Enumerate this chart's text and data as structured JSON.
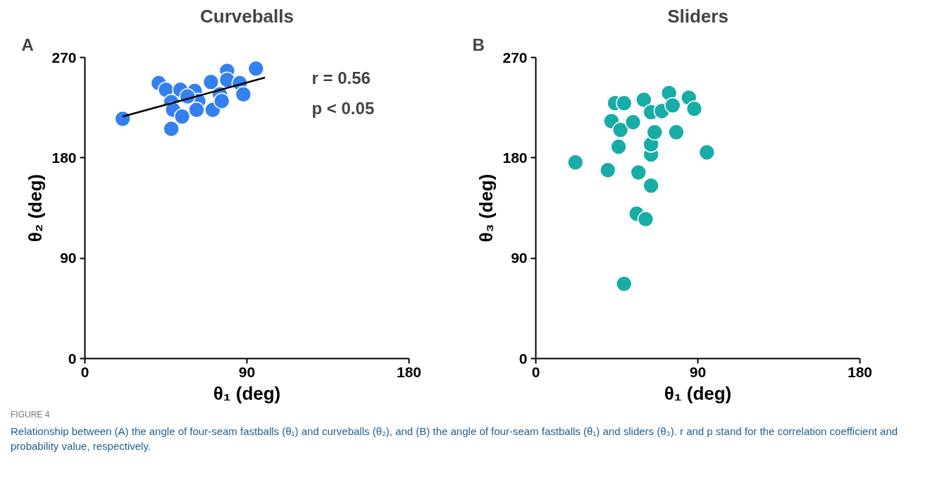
{
  "chart_data": [
    {
      "type": "scatter",
      "title": "Curveballs",
      "xlabel": "θ₁ (deg)",
      "ylabel": "θ₂ (deg)",
      "annotations": [
        "A",
        "r = 0.56",
        "p < 0.05"
      ],
      "xlim": [
        0,
        180
      ],
      "ylim": [
        0,
        270
      ],
      "xticks": [
        0,
        90,
        180
      ],
      "yticks": [
        0,
        90,
        180,
        270
      ],
      "grid": false,
      "series": [
        {
          "marker": "circle",
          "color": "#3580ef",
          "x": [
            21,
            41,
            48,
            45,
            53,
            48,
            49,
            54,
            61,
            63,
            62,
            70,
            71,
            75,
            76,
            79,
            79,
            86,
            88,
            95,
            57
          ],
          "values": [
            215,
            247,
            206,
            241,
            241,
            230,
            223,
            217,
            240,
            231,
            223,
            248,
            223,
            237,
            231,
            258,
            250,
            247,
            237,
            260,
            235
          ]
        },
        {
          "type": "line",
          "color": "#000000",
          "x": [
            21,
            100
          ],
          "values": [
            217,
            252
          ]
        }
      ]
    },
    {
      "type": "scatter",
      "title": "Sliders",
      "xlabel": "θ₁ (deg)",
      "ylabel": "θ₃ (deg)",
      "annotations": [
        "B",
        "FIGURE 4",
        "Relationship between (A) the angle of four-seam fastballs (θ₁) and curveballs (θ₂), and (B) the angle of four-seam fastballs (θ₁) and sliders (θ₃). r and p stand for the correlation coefficient and probability value, respectively."
      ],
      "xlim": [
        0,
        180
      ],
      "ylim": [
        0,
        270
      ],
      "xticks": [
        0,
        90,
        180
      ],
      "yticks": [
        0,
        90,
        180,
        270
      ],
      "grid": false,
      "marker": "circle",
      "series": [
        {
          "color": "#17ada6",
          "x": [
            22,
            40,
            57,
            64,
            56,
            61,
            49,
            46,
            64,
            64,
            66,
            78,
            95,
            42,
            47,
            54,
            44,
            49,
            60,
            64,
            70,
            74,
            76,
            85,
            88
          ],
          "values": [
            176,
            169,
            167,
            155,
            130,
            125,
            67,
            190,
            183,
            192,
            203,
            203,
            185,
            213,
            205,
            212,
            229,
            229,
            232,
            221,
            222,
            238,
            227,
            234,
            224
          ]
        }
      ]
    }
  ]
}
